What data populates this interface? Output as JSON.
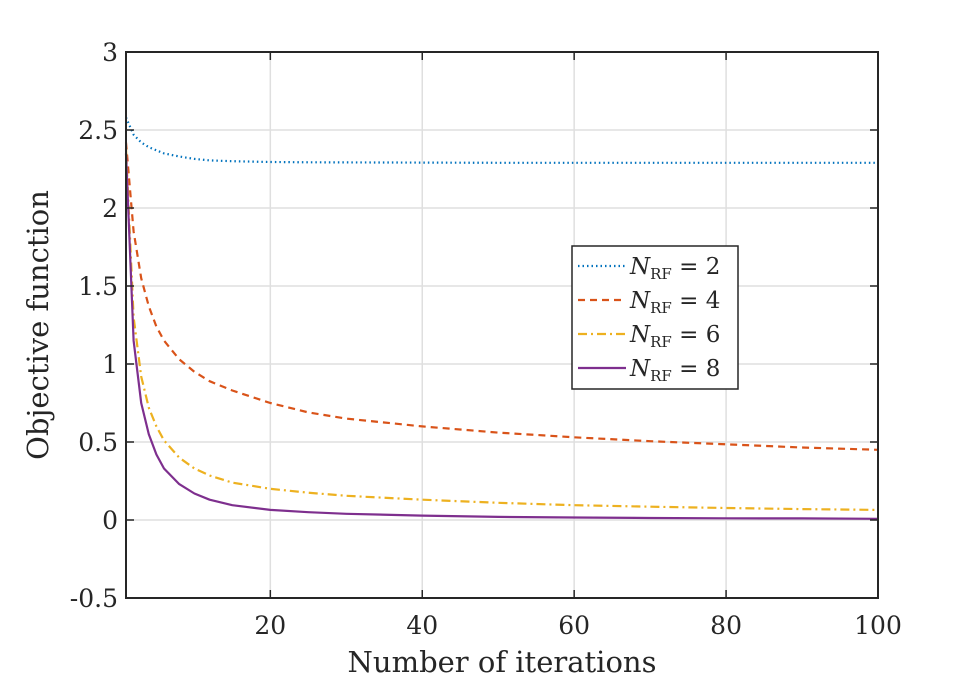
{
  "chart_data": {
    "type": "line",
    "title": "",
    "xlabel": "Number of iterations",
    "ylabel": "Objective function",
    "xlim": [
      1,
      100
    ],
    "ylim": [
      -0.5,
      3
    ],
    "xticks": [
      20,
      40,
      60,
      80,
      100
    ],
    "xtick_labels": [
      "20",
      "40",
      "60",
      "80",
      "100"
    ],
    "yticks": [
      -0.5,
      0,
      0.5,
      1,
      1.5,
      2,
      2.5,
      3
    ],
    "ytick_labels": [
      "-0.5",
      "0",
      "0.5",
      "1",
      "1.5",
      "2",
      "2.5",
      "3"
    ],
    "grid": true,
    "legend_position": "center-right",
    "x": [
      1,
      2,
      3,
      4,
      5,
      6,
      8,
      10,
      12,
      15,
      20,
      25,
      30,
      40,
      50,
      60,
      70,
      80,
      90,
      100
    ],
    "series": [
      {
        "name": "N_RF = 2",
        "legend": {
          "symbol": "N",
          "sub": "RF",
          "rest": " = 2"
        },
        "color": "#0072BD",
        "style": "dotted",
        "values": [
          2.58,
          2.47,
          2.42,
          2.39,
          2.37,
          2.35,
          2.33,
          2.315,
          2.305,
          2.3,
          2.295,
          2.293,
          2.292,
          2.291,
          2.29,
          2.29,
          2.29,
          2.29,
          2.29,
          2.29
        ]
      },
      {
        "name": "N_RF = 4",
        "legend": {
          "symbol": "N",
          "sub": "RF",
          "rest": " = 4"
        },
        "color": "#D95319",
        "style": "dashed",
        "values": [
          2.42,
          1.85,
          1.55,
          1.37,
          1.24,
          1.15,
          1.03,
          0.95,
          0.89,
          0.83,
          0.75,
          0.69,
          0.65,
          0.6,
          0.56,
          0.53,
          0.505,
          0.485,
          0.465,
          0.45
        ]
      },
      {
        "name": "N_RF = 6",
        "legend": {
          "symbol": "N",
          "sub": "RF",
          "rest": " = 6"
        },
        "color": "#EDB120",
        "style": "dashdot",
        "values": [
          2.38,
          1.3,
          0.92,
          0.72,
          0.6,
          0.51,
          0.4,
          0.33,
          0.285,
          0.24,
          0.2,
          0.175,
          0.155,
          0.13,
          0.11,
          0.095,
          0.085,
          0.077,
          0.07,
          0.065
        ]
      },
      {
        "name": "N_RF = 8",
        "legend": {
          "symbol": "N",
          "sub": "RF",
          "rest": " = 8"
        },
        "color": "#7E2F8E",
        "style": "solid",
        "values": [
          2.35,
          1.15,
          0.75,
          0.55,
          0.42,
          0.33,
          0.23,
          0.17,
          0.13,
          0.095,
          0.065,
          0.05,
          0.04,
          0.028,
          0.02,
          0.016,
          0.013,
          0.011,
          0.01,
          0.008
        ]
      }
    ]
  }
}
